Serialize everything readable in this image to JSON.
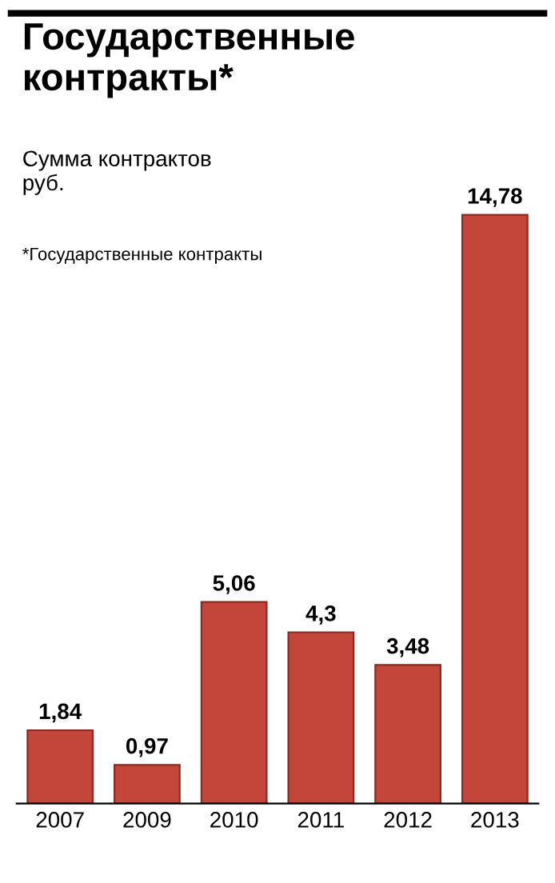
{
  "chart_data": {
    "type": "bar",
    "title": "Государственные контракты*",
    "subtitle": "Сумма контрактов\nруб.",
    "categories": [
      "2007",
      "2009",
      "2010",
      "2011",
      "2012",
      "2013"
    ],
    "values": [
      1.84,
      0.97,
      5.06,
      4.3,
      3.48,
      14.78
    ],
    "color": "#c4463a",
    "data_labels": true,
    "value_labels": [
      "1,84",
      "0,97",
      "5,06",
      "4,3",
      "3,48",
      "14,78"
    ],
    "annotations": [
      "*Государственные контракты"
    ]
  }
}
